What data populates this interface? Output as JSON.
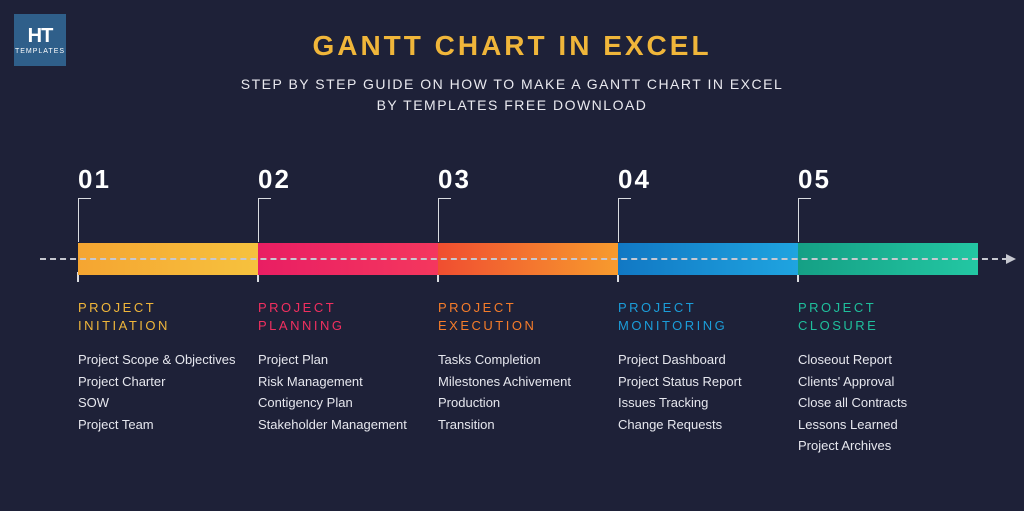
{
  "logo": {
    "top": "HT",
    "bottom": "TEMPLATES"
  },
  "title": "GANTT CHART IN EXCEL",
  "subtitle_line1": "STEP BY STEP GUIDE ON HOW TO MAKE A GANTT CHART IN EXCEL",
  "subtitle_line2": "BY TEMPLATES FREE DOWNLOAD",
  "colors": {
    "background": "#1e2138",
    "title": "#f0b63a",
    "text": "#ffffff",
    "body": "#e6e7ee",
    "dash": "#c6c8d0"
  },
  "steps": [
    {
      "num": "01",
      "phase": "PROJECT INITIATION",
      "phase_color": "#f0b63a",
      "bar_gradient": [
        "#f5a531",
        "#f6c23e"
      ],
      "items": [
        "Project Scope & Objectives",
        "Project Charter",
        "SOW",
        "Project Team"
      ]
    },
    {
      "num": "02",
      "phase": "PROJECT PLANNING",
      "phase_color": "#f12f5f",
      "bar_gradient": [
        "#e91e63",
        "#f4375e"
      ],
      "items": [
        "Project Plan",
        "Risk Management",
        "Contigency Plan",
        "Stakeholder Management"
      ]
    },
    {
      "num": "03",
      "phase": "PROJECT EXECUTION",
      "phase_color": "#f57c2a",
      "bar_gradient": [
        "#f04e30",
        "#f79b2e"
      ],
      "items": [
        "Tasks Completion",
        "Milestones Achivement",
        "Production",
        "Transition"
      ]
    },
    {
      "num": "04",
      "phase": "PROJECT MONITORING",
      "phase_color": "#1b9dd9",
      "bar_gradient": [
        "#1178c4",
        "#1fa4e0"
      ],
      "items": [
        "Project Dashboard",
        "Project Status Report",
        "Issues Tracking",
        "Change Requests"
      ]
    },
    {
      "num": "05",
      "phase": "PROJECT CLOSURE",
      "phase_color": "#1fbf9c",
      "bar_gradient": [
        "#15a085",
        "#23c7a3"
      ],
      "items": [
        "Closeout Report",
        "Clients' Approval",
        "Close all Contracts",
        "Lessons Learned",
        "Project Archives"
      ]
    }
  ]
}
